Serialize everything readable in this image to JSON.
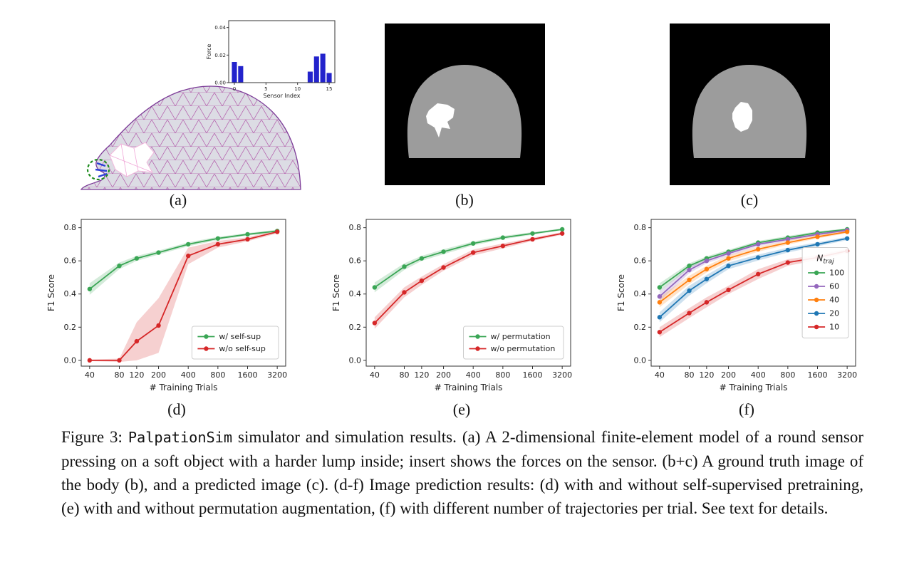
{
  "figure": {
    "panel_labels": {
      "a": "(a)",
      "b": "(b)",
      "c": "(c)",
      "d": "(d)",
      "e": "(e)",
      "f": "(f)"
    },
    "caption": {
      "prefix": "Figure 3: ",
      "code": "PalpationSim",
      "body": " simulator and simulation results. (a) A 2-dimensional finite-element model of a round sensor pressing on a soft object with a harder lump inside; insert shows the forces on the sensor. (b+c) A ground truth image of the body (b), and a predicted image (c). (d-f) Image prediction results: (d) with and without self-supervised pretraining, (e) with and without permutation augmentation, (f) with different number of trajectories per trial. See text for details."
    }
  },
  "colors": {
    "green": "#3aa655",
    "red": "#d62728",
    "purple": "#9467bd",
    "orange": "#ff7f0e",
    "blue": "#1f77b4",
    "bar_blue": "#2323cc",
    "mesh_line": "#b668b0",
    "mesh_outline": "#7d3c98",
    "body_gray": "#9c9c9c",
    "image_background": "#000000"
  },
  "chart_data": [
    {
      "svg": "inset-chart",
      "type": "bar",
      "title": "",
      "xlabel": "Sensor Index",
      "ylabel": "Force",
      "x": [
        0,
        1,
        2,
        3,
        4,
        5,
        6,
        7,
        8,
        9,
        10,
        11,
        12,
        13,
        14,
        15
      ],
      "values": [
        0.015,
        0.012,
        0,
        0,
        0,
        0,
        0,
        0,
        0,
        0,
        0,
        0,
        0.008,
        0.019,
        0.021,
        0.007
      ],
      "xticks": [
        0,
        5,
        10,
        15
      ],
      "yticks": [
        0.0,
        0.02,
        0.04
      ],
      "ytick_labels": [
        "0.00",
        "0.02",
        "0.04"
      ],
      "ylim": [
        0,
        0.045
      ],
      "bar_color": "#2323cc"
    },
    {
      "svg": "chart-d",
      "type": "line",
      "xlabel": "# Training Trials",
      "ylabel": "F1 Score",
      "xscale": "log",
      "x": [
        40,
        80,
        120,
        200,
        400,
        800,
        1600,
        3200
      ],
      "ylim": [
        -0.035,
        0.85
      ],
      "yticks": [
        0.0,
        0.2,
        0.4,
        0.6,
        0.8
      ],
      "legend_loc": "lower right",
      "series": [
        {
          "name": "w/ self-sup",
          "color": "#3aa655",
          "values": [
            0.43,
            0.57,
            0.615,
            0.65,
            0.7,
            0.735,
            0.76,
            0.78
          ],
          "band": [
            0.035,
            0.02,
            0.015,
            0.012,
            0.012,
            0.01,
            0.008,
            0.008
          ]
        },
        {
          "name": "w/o self-sup",
          "color": "#d62728",
          "values": [
            0.0,
            0.0,
            0.115,
            0.21,
            0.63,
            0.7,
            0.73,
            0.775
          ],
          "band": [
            0.005,
            0.01,
            0.115,
            0.165,
            0.05,
            0.02,
            0.012,
            0.01
          ]
        }
      ]
    },
    {
      "svg": "chart-e",
      "type": "line",
      "xlabel": "# Training Trials",
      "ylabel": "F1 Score",
      "xscale": "log",
      "x": [
        40,
        80,
        120,
        200,
        400,
        800,
        1600,
        3200
      ],
      "ylim": [
        -0.035,
        0.85
      ],
      "yticks": [
        0.0,
        0.2,
        0.4,
        0.6,
        0.8
      ],
      "legend_loc": "lower right",
      "series": [
        {
          "name": "w/ permutation",
          "color": "#3aa655",
          "values": [
            0.44,
            0.565,
            0.615,
            0.655,
            0.705,
            0.74,
            0.765,
            0.79
          ],
          "band": [
            0.03,
            0.02,
            0.015,
            0.015,
            0.012,
            0.01,
            0.008,
            0.006
          ]
        },
        {
          "name": "w/o permutation",
          "color": "#d62728",
          "values": [
            0.225,
            0.41,
            0.48,
            0.56,
            0.65,
            0.69,
            0.73,
            0.765
          ],
          "band": [
            0.035,
            0.03,
            0.025,
            0.02,
            0.018,
            0.015,
            0.01,
            0.008
          ]
        }
      ]
    },
    {
      "svg": "chart-f",
      "type": "line",
      "xlabel": "# Training Trials",
      "ylabel": "F1 Score",
      "xscale": "log",
      "x": [
        40,
        80,
        120,
        200,
        400,
        800,
        1600,
        3200
      ],
      "ylim": [
        -0.035,
        0.85
      ],
      "yticks": [
        0.0,
        0.2,
        0.4,
        0.6,
        0.8
      ],
      "legend_loc": "center right",
      "legend_title": "N_traj",
      "series": [
        {
          "name": "100",
          "color": "#3aa655",
          "values": [
            0.44,
            0.57,
            0.615,
            0.655,
            0.71,
            0.74,
            0.77,
            0.79
          ],
          "band": [
            0.025,
            0.015,
            0.012,
            0.012,
            0.01,
            0.01,
            0.008,
            0.006
          ]
        },
        {
          "name": "60",
          "color": "#9467bd",
          "values": [
            0.385,
            0.545,
            0.6,
            0.645,
            0.7,
            0.73,
            0.76,
            0.785
          ],
          "band": [
            0.03,
            0.02,
            0.015,
            0.015,
            0.012,
            0.01,
            0.008,
            0.008
          ]
        },
        {
          "name": "40",
          "color": "#ff7f0e",
          "values": [
            0.35,
            0.485,
            0.55,
            0.615,
            0.67,
            0.71,
            0.745,
            0.775
          ],
          "band": [
            0.03,
            0.025,
            0.02,
            0.018,
            0.015,
            0.012,
            0.01,
            0.008
          ]
        },
        {
          "name": "20",
          "color": "#1f77b4",
          "values": [
            0.26,
            0.42,
            0.49,
            0.57,
            0.62,
            0.665,
            0.7,
            0.735
          ],
          "band": [
            0.03,
            0.03,
            0.025,
            0.02,
            0.018,
            0.015,
            0.012,
            0.01
          ]
        },
        {
          "name": "10",
          "color": "#d62728",
          "values": [
            0.17,
            0.285,
            0.35,
            0.425,
            0.52,
            0.59,
            0.62,
            0.66
          ],
          "band": [
            0.03,
            0.03,
            0.03,
            0.025,
            0.03,
            0.02,
            0.015,
            0.012
          ]
        }
      ]
    }
  ]
}
